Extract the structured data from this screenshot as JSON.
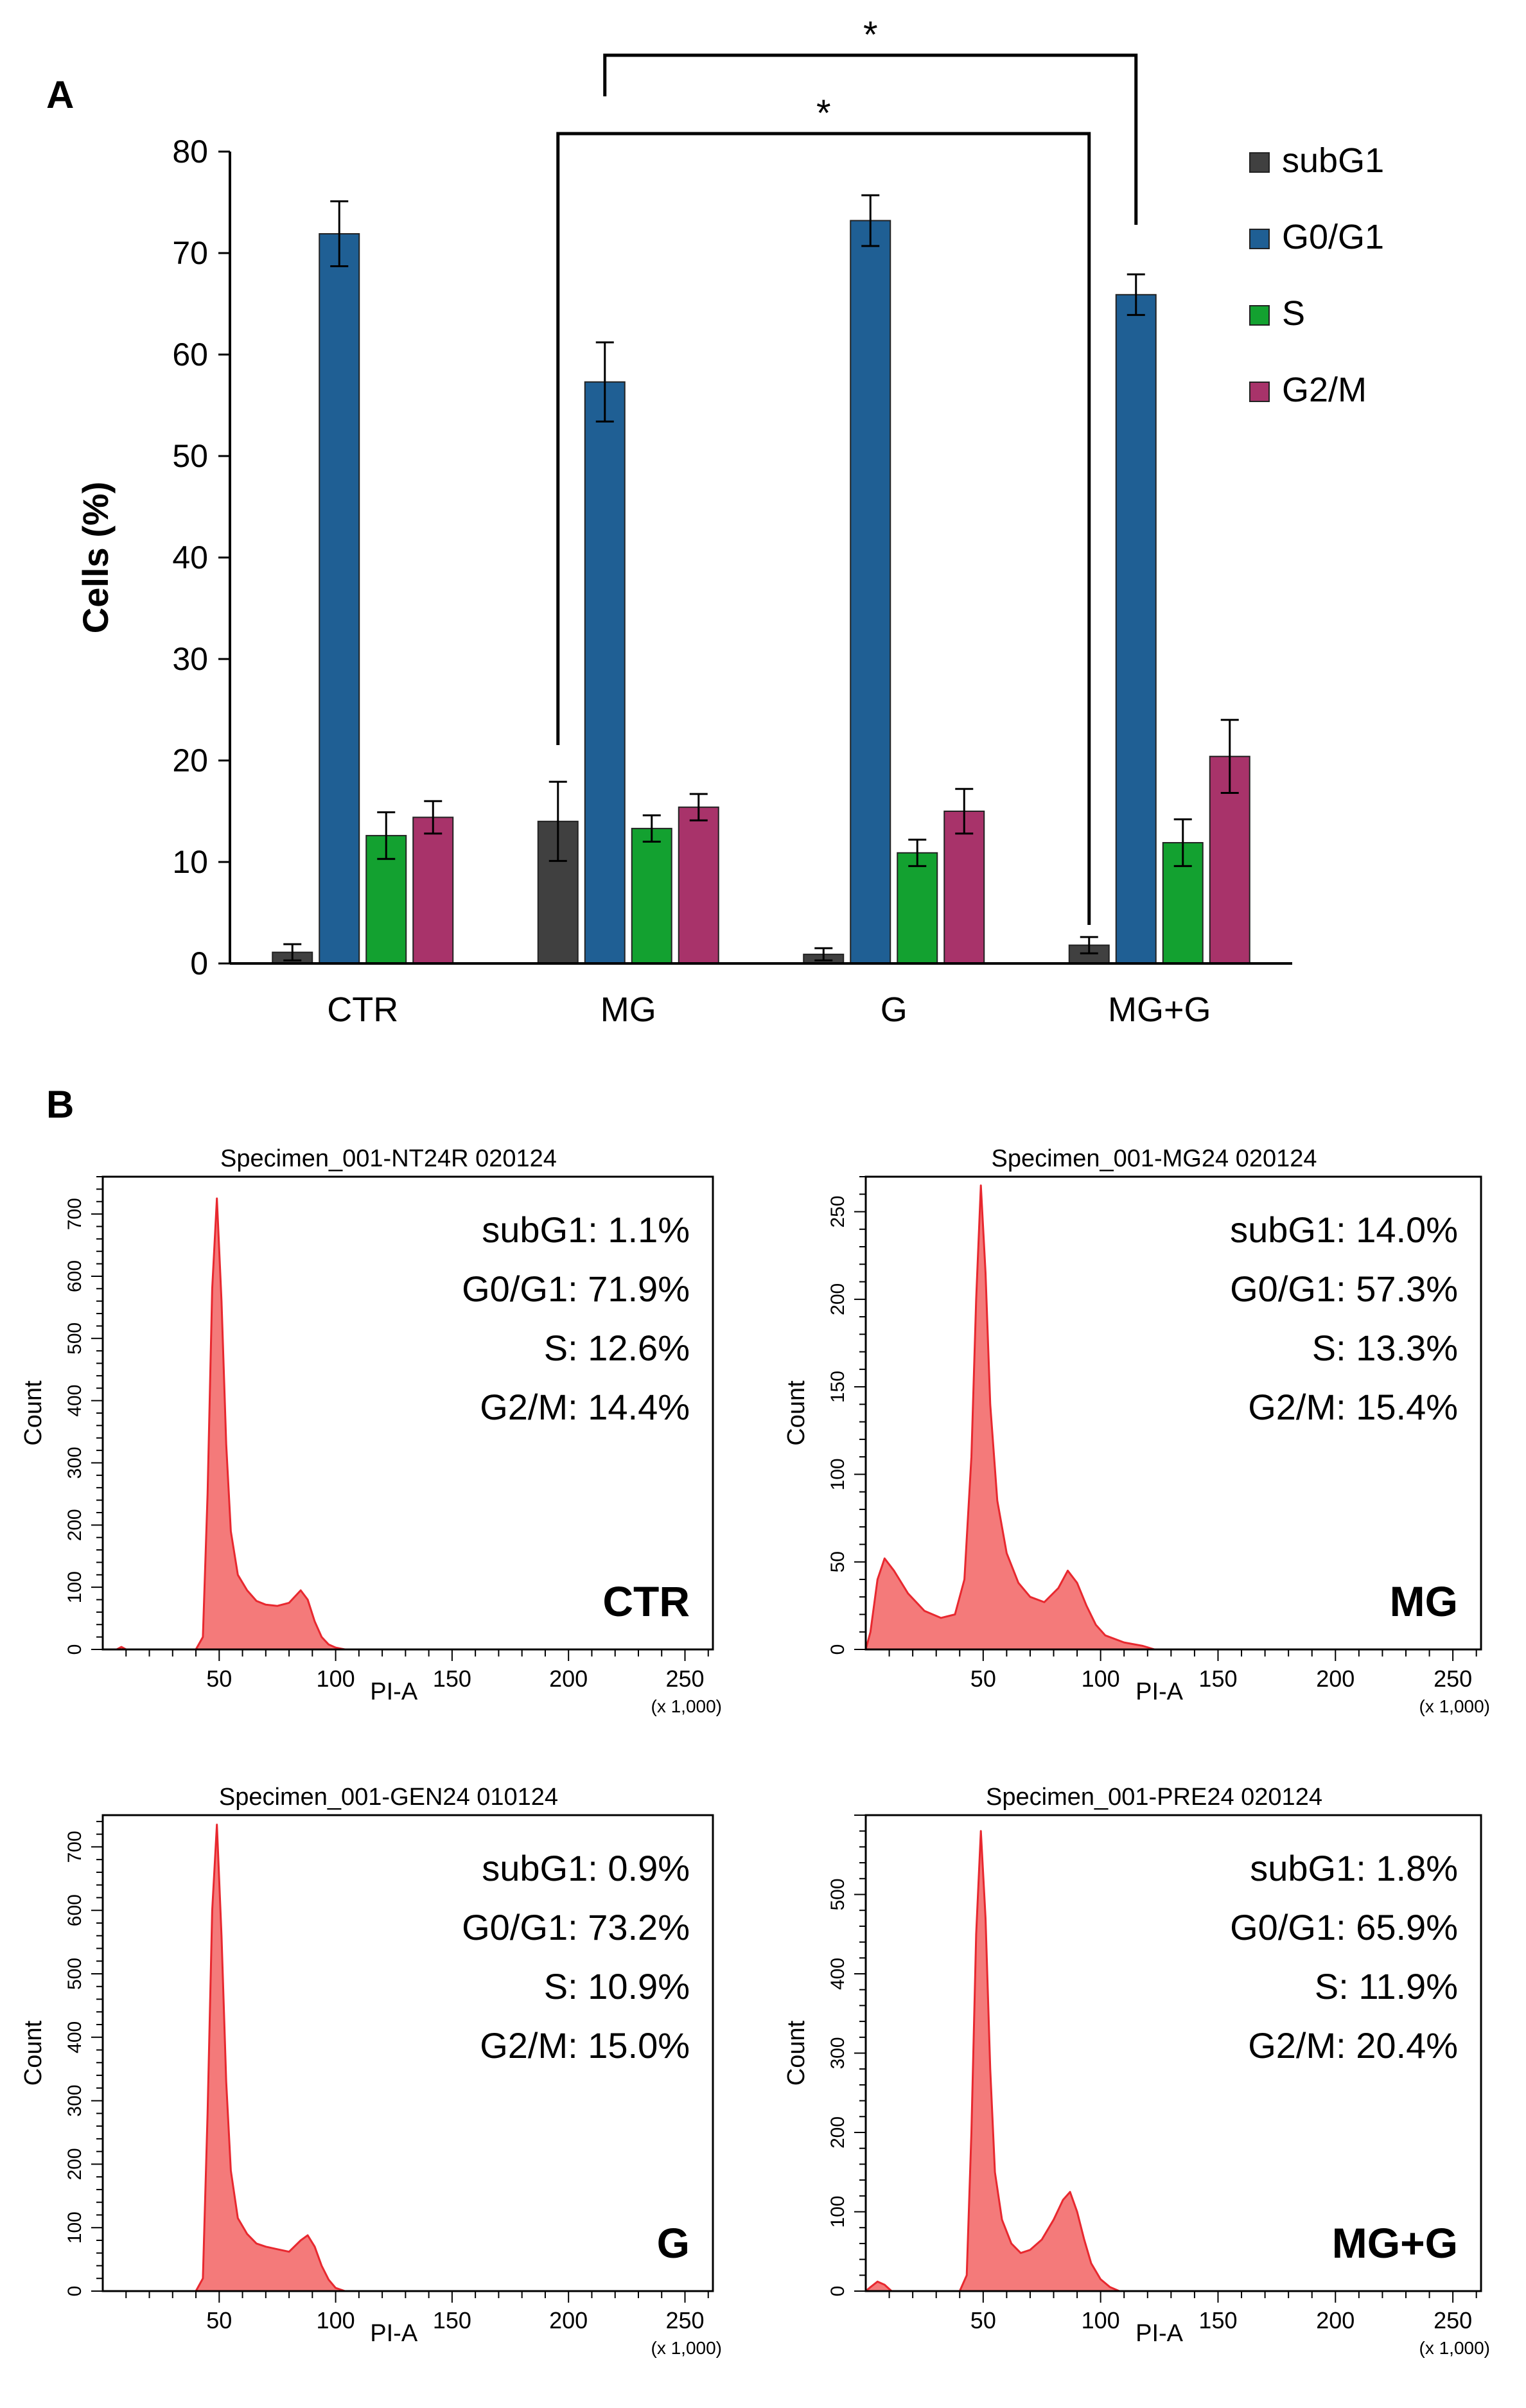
{
  "panel_a": {
    "label": "A",
    "significance_marker": "*"
  },
  "panel_b": {
    "label": "B"
  },
  "chart_data": [
    {
      "type": "bar",
      "title": "",
      "xlabel": "",
      "ylabel": "Cells (%)",
      "ylim": [
        0,
        80
      ],
      "yticks": [
        "0",
        "10",
        "20",
        "30",
        "40",
        "50",
        "60",
        "70",
        "80"
      ],
      "categories": [
        "CTR",
        "MG",
        "G",
        "MG+G"
      ],
      "legend_position": "top-right",
      "series": [
        {
          "name": "subG1",
          "color": "#404040",
          "values": [
            1.1,
            14.0,
            0.9,
            1.8
          ],
          "errors": [
            0.8,
            3.9,
            0.6,
            0.8
          ]
        },
        {
          "name": "G0/G1",
          "color": "#1F5F94",
          "values": [
            71.9,
            57.3,
            73.2,
            65.9
          ],
          "errors": [
            3.2,
            3.9,
            2.5,
            2.0
          ]
        },
        {
          "name": "S",
          "color": "#13A130",
          "values": [
            12.6,
            13.3,
            10.9,
            11.9
          ],
          "errors": [
            2.3,
            1.3,
            1.3,
            2.3
          ]
        },
        {
          "name": "G2/M",
          "color": "#A8336A",
          "values": [
            14.4,
            15.4,
            15.0,
            20.4
          ],
          "errors": [
            1.6,
            1.3,
            2.2,
            3.6
          ]
        }
      ],
      "significance": [
        {
          "from": "MG subG1",
          "to": "MG+G subG1",
          "label": "*"
        },
        {
          "from": "MG G0/G1",
          "to": "MG+G G0/G1",
          "label": "*"
        }
      ]
    },
    {
      "type": "area",
      "title": "Specimen_001-NT24R 020124",
      "xlabel": "PI-A",
      "x_unit": "(x 1,000)",
      "ylabel": "Count",
      "xlim": [
        0,
        262
      ],
      "ylim": [
        0,
        760
      ],
      "xticks": [
        "50",
        "100",
        "150",
        "200",
        "250"
      ],
      "yticks": [
        "0",
        "100",
        "200",
        "300",
        "400",
        "500",
        "600",
        "700"
      ],
      "condition": "CTR",
      "stats": [
        "subG1: 1.1%",
        "G0/G1: 71.9%",
        "S: 12.6%",
        "G2/M: 14.4%"
      ],
      "histogram": {
        "x": [
          0,
          6,
          8,
          10,
          40,
          43,
          45,
          47,
          49,
          51,
          53,
          55,
          58,
          62,
          66,
          70,
          75,
          80,
          85,
          88,
          91,
          94,
          97,
          100,
          104,
          262
        ],
        "y": [
          0,
          0,
          4,
          0,
          0,
          20,
          250,
          580,
          725,
          560,
          330,
          190,
          120,
          95,
          78,
          72,
          70,
          75,
          95,
          80,
          45,
          20,
          8,
          3,
          0,
          0
        ]
      }
    },
    {
      "type": "area",
      "title": "Specimen_001-MG24 020124",
      "xlabel": "PI-A",
      "x_unit": "(x 1,000)",
      "ylabel": "Count",
      "xlim": [
        0,
        262
      ],
      "ylim": [
        0,
        270
      ],
      "xticks": [
        "50",
        "100",
        "150",
        "200",
        "250"
      ],
      "yticks": [
        "0",
        "50",
        "100",
        "150",
        "200",
        "250"
      ],
      "condition": "MG",
      "stats": [
        "subG1: 14.0%",
        "G0/G1: 57.3%",
        "S: 13.3%",
        "G2/M: 15.4%"
      ],
      "histogram": {
        "x": [
          0,
          2,
          5,
          8,
          12,
          18,
          25,
          32,
          38,
          42,
          45,
          47,
          49,
          51,
          53,
          56,
          60,
          65,
          70,
          76,
          82,
          86,
          90,
          94,
          98,
          102,
          110,
          118,
          123,
          262
        ],
        "y": [
          0,
          10,
          40,
          52,
          45,
          32,
          22,
          18,
          20,
          40,
          110,
          200,
          265,
          215,
          140,
          85,
          55,
          38,
          30,
          27,
          35,
          45,
          38,
          25,
          14,
          8,
          4,
          2,
          0,
          0
        ]
      }
    },
    {
      "type": "area",
      "title": "Specimen_001-GEN24 010124",
      "xlabel": "PI-A",
      "x_unit": "(x 1,000)",
      "ylabel": "Count",
      "xlim": [
        0,
        262
      ],
      "ylim": [
        0,
        750
      ],
      "xticks": [
        "50",
        "100",
        "150",
        "200",
        "250"
      ],
      "yticks": [
        "0",
        "100",
        "200",
        "300",
        "400",
        "500",
        "600",
        "700"
      ],
      "condition": "G",
      "stats": [
        "subG1: 0.9%",
        "G0/G1: 73.2%",
        "S: 10.9%",
        "G2/M: 15.0%"
      ],
      "histogram": {
        "x": [
          0,
          40,
          43,
          45,
          47,
          49,
          51,
          53,
          55,
          58,
          62,
          66,
          70,
          75,
          80,
          85,
          88,
          91,
          94,
          97,
          100,
          104,
          262
        ],
        "y": [
          0,
          0,
          20,
          280,
          600,
          735,
          560,
          330,
          190,
          115,
          90,
          75,
          70,
          66,
          62,
          80,
          88,
          70,
          40,
          18,
          5,
          0,
          0
        ]
      }
    },
    {
      "type": "area",
      "title": "Specimen_001-PRE24 020124",
      "xlabel": "PI-A",
      "x_unit": "(x 1,000)",
      "ylabel": "Count",
      "xlim": [
        0,
        262
      ],
      "ylim": [
        0,
        600
      ],
      "xticks": [
        "50",
        "100",
        "150",
        "200",
        "250"
      ],
      "yticks": [
        "0",
        "100",
        "200",
        "300",
        "400",
        "500"
      ],
      "condition": "MG+G",
      "stats": [
        "subG1: 1.8%",
        "G0/G1: 65.9%",
        "S: 11.9%",
        "G2/M: 20.4%"
      ],
      "histogram": {
        "x": [
          0,
          2,
          5,
          8,
          11,
          40,
          43,
          45,
          47,
          49,
          51,
          53,
          55,
          58,
          62,
          66,
          70,
          75,
          80,
          84,
          87,
          90,
          93,
          96,
          100,
          104,
          108,
          262
        ],
        "y": [
          0,
          5,
          12,
          8,
          0,
          0,
          20,
          200,
          450,
          580,
          470,
          280,
          150,
          90,
          60,
          48,
          52,
          65,
          90,
          115,
          125,
          100,
          65,
          35,
          15,
          5,
          0,
          0
        ]
      }
    }
  ]
}
